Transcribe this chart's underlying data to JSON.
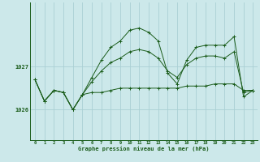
{
  "xlabel": "Graphe pression niveau de la mer (hPa)",
  "background_color": "#cce8ea",
  "grid_color": "#aad0d4",
  "line_color": "#1a5c1a",
  "ylim": [
    1025.3,
    1028.5
  ],
  "xlim": [
    -0.5,
    23.5
  ],
  "series_main": [
    1026.7,
    1026.2,
    1026.45,
    1026.4,
    1026.0,
    1026.35,
    1026.75,
    1027.15,
    1027.45,
    1027.6,
    1027.85,
    1027.9,
    1027.8,
    1027.6,
    1026.85,
    1026.6,
    1027.15,
    1027.45,
    1027.5,
    1027.5,
    1027.5,
    1027.7,
    1026.3,
    1026.45
  ],
  "series_low": [
    1026.7,
    1026.2,
    1026.45,
    1026.4,
    1026.0,
    1026.35,
    1026.4,
    1026.4,
    1026.45,
    1026.5,
    1026.5,
    1026.5,
    1026.5,
    1026.5,
    1026.5,
    1026.5,
    1026.55,
    1026.55,
    1026.55,
    1026.6,
    1026.6,
    1026.6,
    1026.45,
    1026.45
  ],
  "series_mid": [
    1026.7,
    1026.2,
    1026.45,
    1026.4,
    1026.0,
    1026.35,
    1026.65,
    1026.9,
    1027.1,
    1027.2,
    1027.35,
    1027.4,
    1027.35,
    1027.2,
    1026.9,
    1026.75,
    1027.05,
    1027.2,
    1027.25,
    1027.25,
    1027.2,
    1027.35,
    1026.4,
    1026.45
  ],
  "ytick_vals": [
    1026.0,
    1027.0
  ],
  "ytick_labels": [
    "1026",
    "1027"
  ],
  "x_ticks": [
    0,
    1,
    2,
    3,
    4,
    5,
    6,
    7,
    8,
    9,
    10,
    11,
    12,
    13,
    14,
    15,
    16,
    17,
    18,
    19,
    20,
    21,
    22,
    23
  ]
}
